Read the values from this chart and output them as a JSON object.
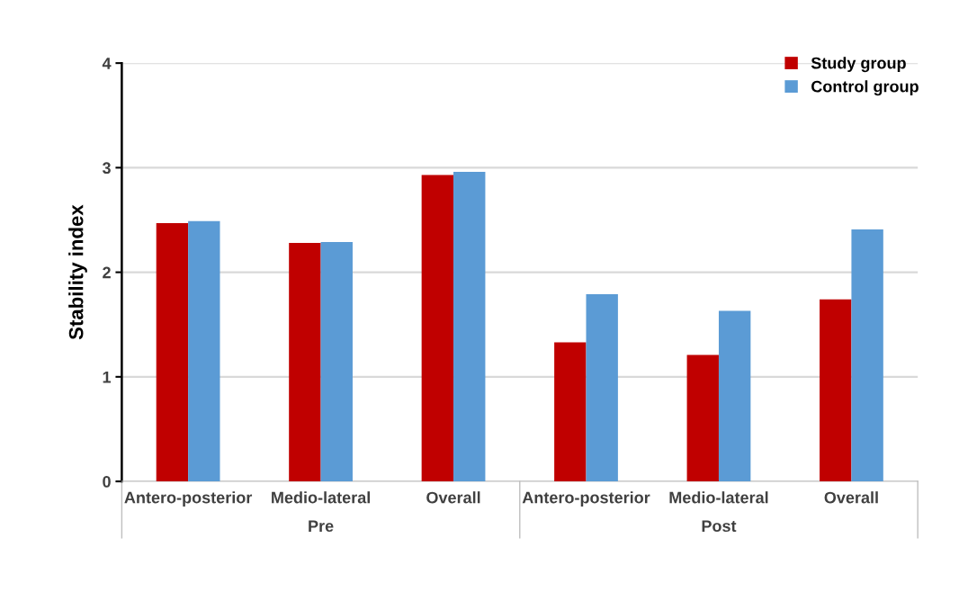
{
  "chart_data": {
    "type": "bar",
    "ylabel": "Stability index",
    "categories": [
      "Antero-posterior",
      "Medio-lateral",
      "Overall",
      "Antero-posterior",
      "Medio-lateral",
      "Overall"
    ],
    "series": [
      {
        "name": "Study group",
        "color": "#c00000",
        "values": [
          2.47,
          2.28,
          2.93,
          1.33,
          1.21,
          1.74
        ]
      },
      {
        "name": "Control group",
        "color": "#5b9bd5",
        "values": [
          2.49,
          2.29,
          2.96,
          1.79,
          1.63,
          2.41
        ]
      }
    ],
    "annotations": [
      "Pre",
      "Post"
    ],
    "ylim": [
      0,
      4
    ],
    "yticks": [
      0,
      1,
      2,
      3,
      4
    ],
    "grid": "y",
    "legend": "top right"
  }
}
